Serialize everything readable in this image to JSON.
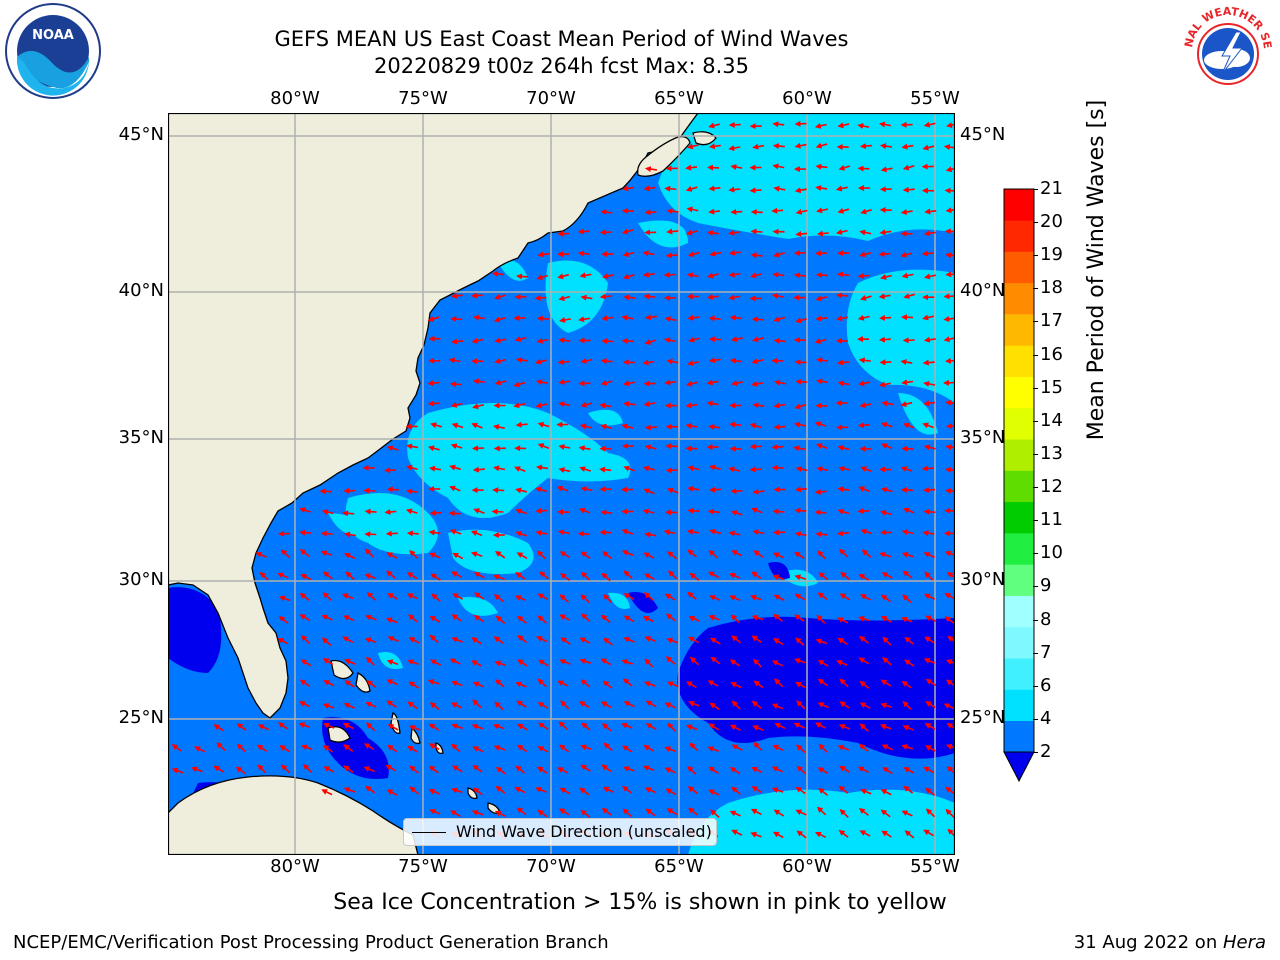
{
  "title": {
    "line1": "GEFS MEAN US East Coast Mean Period of Wind Waves",
    "line2": "20220829 t00z 264h fcst   Max: 8.35"
  },
  "logos": {
    "left": "NOAA",
    "right": "NATIONAL WEATHER SERVICE"
  },
  "map": {
    "lon_labels": [
      "80°W",
      "75°W",
      "70°W",
      "65°W",
      "60°W",
      "55°W"
    ],
    "lat_labels": [
      "45°N",
      "40°N",
      "35°N",
      "30°N",
      "25°N"
    ],
    "extent": {
      "lon": [
        -85,
        -54.5
      ],
      "lat": [
        20.5,
        46
      ]
    },
    "legend": "Wind Wave Direction (unscaled)",
    "colors": {
      "land": "#efeedd",
      "arrows": "#ff0000",
      "grid": "#b0b0b0",
      "coast": "#000000"
    }
  },
  "colorbar": {
    "label": "Mean Period of Wind Waves [s]",
    "ticks": [
      "2",
      "4",
      "6",
      "7",
      "8",
      "9",
      "10",
      "11",
      "12",
      "13",
      "14",
      "15",
      "16",
      "17",
      "18",
      "19",
      "20",
      "21"
    ],
    "colors": [
      "#0078ff",
      "#00e0ff",
      "#40f0ff",
      "#80f8ff",
      "#a0ffff",
      "#60ff80",
      "#20ee40",
      "#00cc00",
      "#60dd00",
      "#b0ee00",
      "#e0ff00",
      "#ffff00",
      "#ffe000",
      "#ffb800",
      "#ff8c00",
      "#ff5c00",
      "#ff2800",
      "#ff0000"
    ],
    "under_color": "#0000ee"
  },
  "note": "Sea Ice Concentration > 15% is shown in pink to yellow",
  "footer": {
    "left": "NCEP/EMC/Verification Post Processing Product Generation Branch",
    "date": "31 Aug 2022 on ",
    "host": "Hera"
  }
}
